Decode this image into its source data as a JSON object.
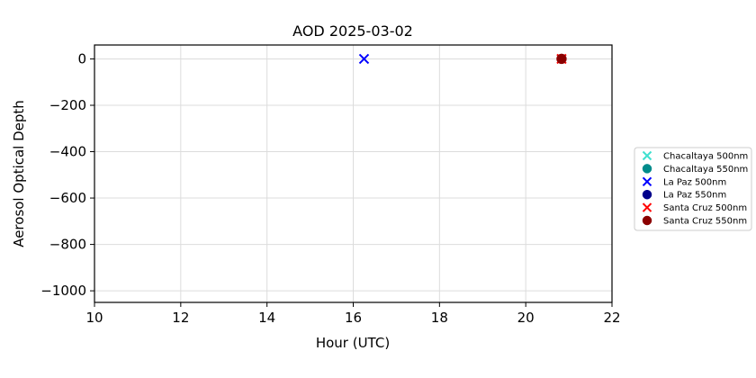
{
  "chart_data": {
    "type": "scatter",
    "title": "AOD 2025-03-02",
    "xlabel": "Hour (UTC)",
    "ylabel": "Aerosol Optical Depth",
    "xlim": [
      10,
      22
    ],
    "ylim": [
      -1050,
      60
    ],
    "xticks": [
      10,
      12,
      14,
      16,
      18,
      20,
      22
    ],
    "yticks": [
      0,
      -200,
      -400,
      -600,
      -800,
      -1000
    ],
    "xtick_labels": [
      "10",
      "12",
      "14",
      "16",
      "18",
      "20",
      "22"
    ],
    "ytick_labels": [
      "0",
      "−200",
      "−400",
      "−600",
      "−800",
      "−1000"
    ],
    "grid": true,
    "legend_position": "right",
    "series": [
      {
        "name": "Chacaltaya 500nm",
        "marker": "x",
        "color": "#40e0d0",
        "points": []
      },
      {
        "name": "Chacaltaya 550nm",
        "marker": "o",
        "color": "#008b8b",
        "points": []
      },
      {
        "name": "La Paz 500nm",
        "marker": "x",
        "color": "#0000ff",
        "points": [
          [
            16.25,
            0.1
          ]
        ]
      },
      {
        "name": "La Paz 550nm",
        "marker": "o",
        "color": "#00008b",
        "points": []
      },
      {
        "name": "Santa Cruz 500nm",
        "marker": "x",
        "color": "#ff0000",
        "points": [
          [
            20.83,
            0.2
          ]
        ]
      },
      {
        "name": "Santa Cruz 550nm",
        "marker": "o",
        "color": "#8b0000",
        "points": [
          [
            20.83,
            0.2
          ]
        ]
      }
    ]
  }
}
